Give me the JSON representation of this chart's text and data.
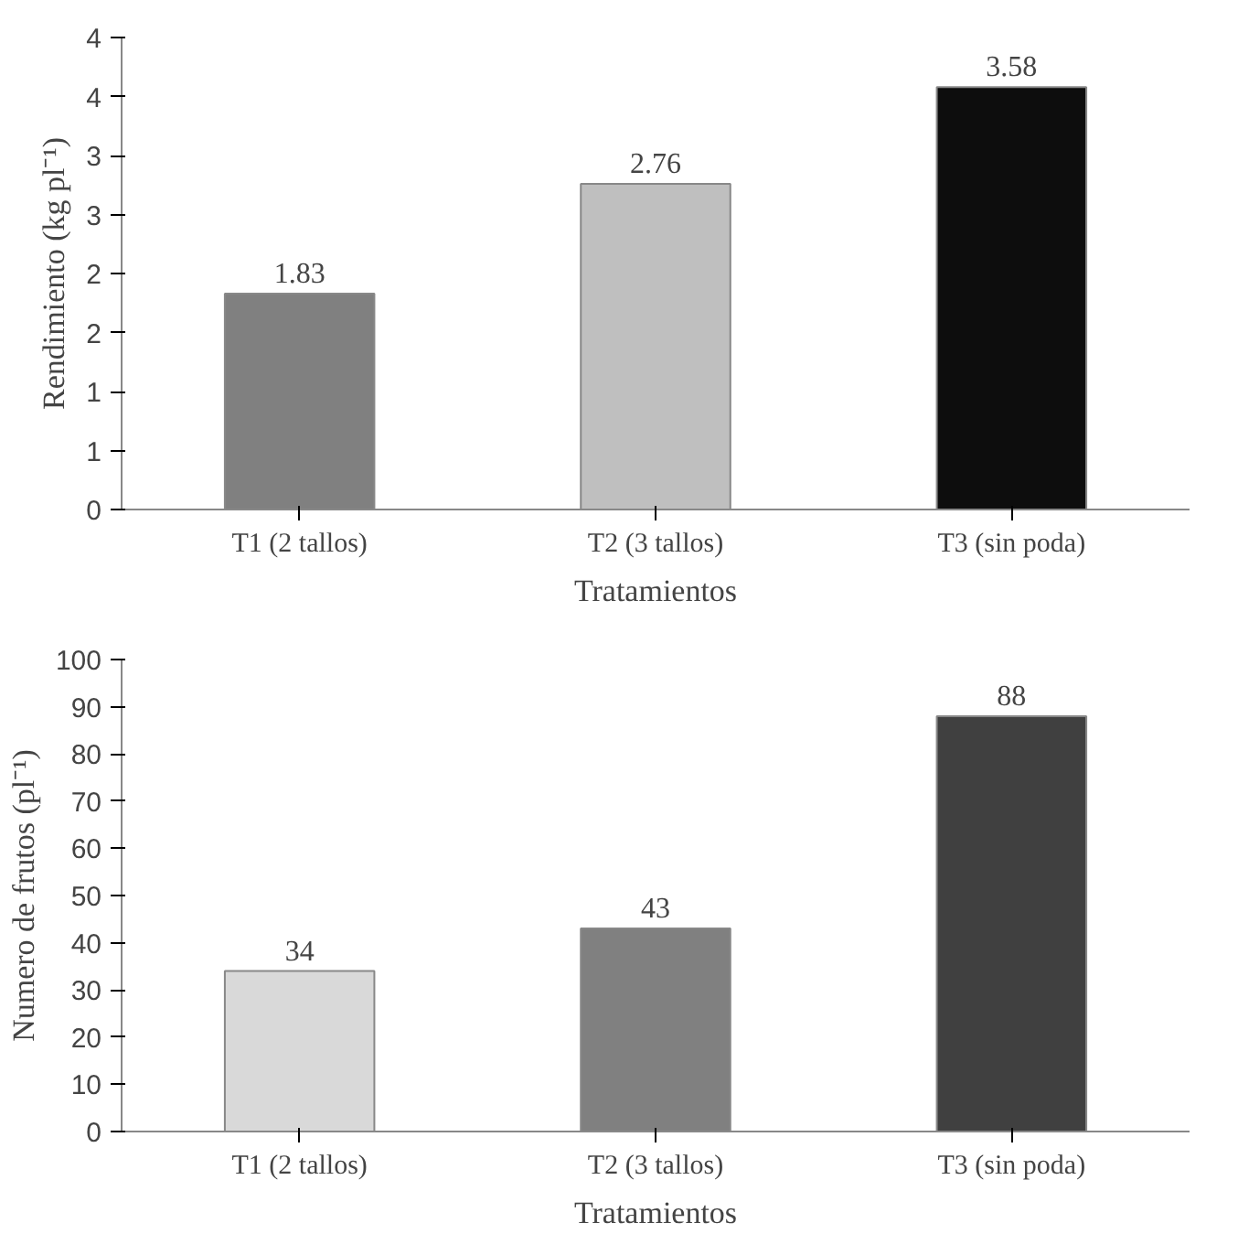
{
  "chart_data": [
    {
      "type": "bar",
      "categories": [
        "T1 (2 tallos)",
        "T2 (3 tallos)",
        "T3 (sin poda)"
      ],
      "xlabel": "Tratamientos",
      "ylabel": "Rendimiento (kg pl⁻¹)",
      "series": [
        {
          "values": [
            1.83,
            2.76,
            3.58
          ],
          "colors": [
            "#808080",
            "#bfbfbf",
            "#0d0d0d"
          ]
        }
      ],
      "ylim": [
        0,
        4
      ],
      "yticks": [
        0,
        {
          "value": 0.5,
          "label": "1"
        },
        1,
        {
          "value": 1.5,
          "label": "2"
        },
        2,
        {
          "value": 2.5,
          "label": "3"
        },
        3,
        {
          "value": 3.5,
          "label": "4"
        },
        4
      ],
      "data_labels": true,
      "grid": false
    },
    {
      "type": "bar",
      "categories": [
        "T1 (2 tallos)",
        "T2 (3 tallos)",
        "T3 (sin poda)"
      ],
      "xlabel": "Tratamientos",
      "ylabel": "Numero de frutos (pl⁻¹)",
      "series": [
        {
          "values": [
            34,
            43,
            88
          ],
          "colors": [
            "#d9d9d9",
            "#808080",
            "#404040"
          ]
        }
      ],
      "ylim": [
        0,
        100
      ],
      "yticks": [
        0,
        10,
        20,
        30,
        40,
        50,
        60,
        70,
        80,
        90,
        100
      ],
      "data_labels": true,
      "grid": false
    }
  ]
}
